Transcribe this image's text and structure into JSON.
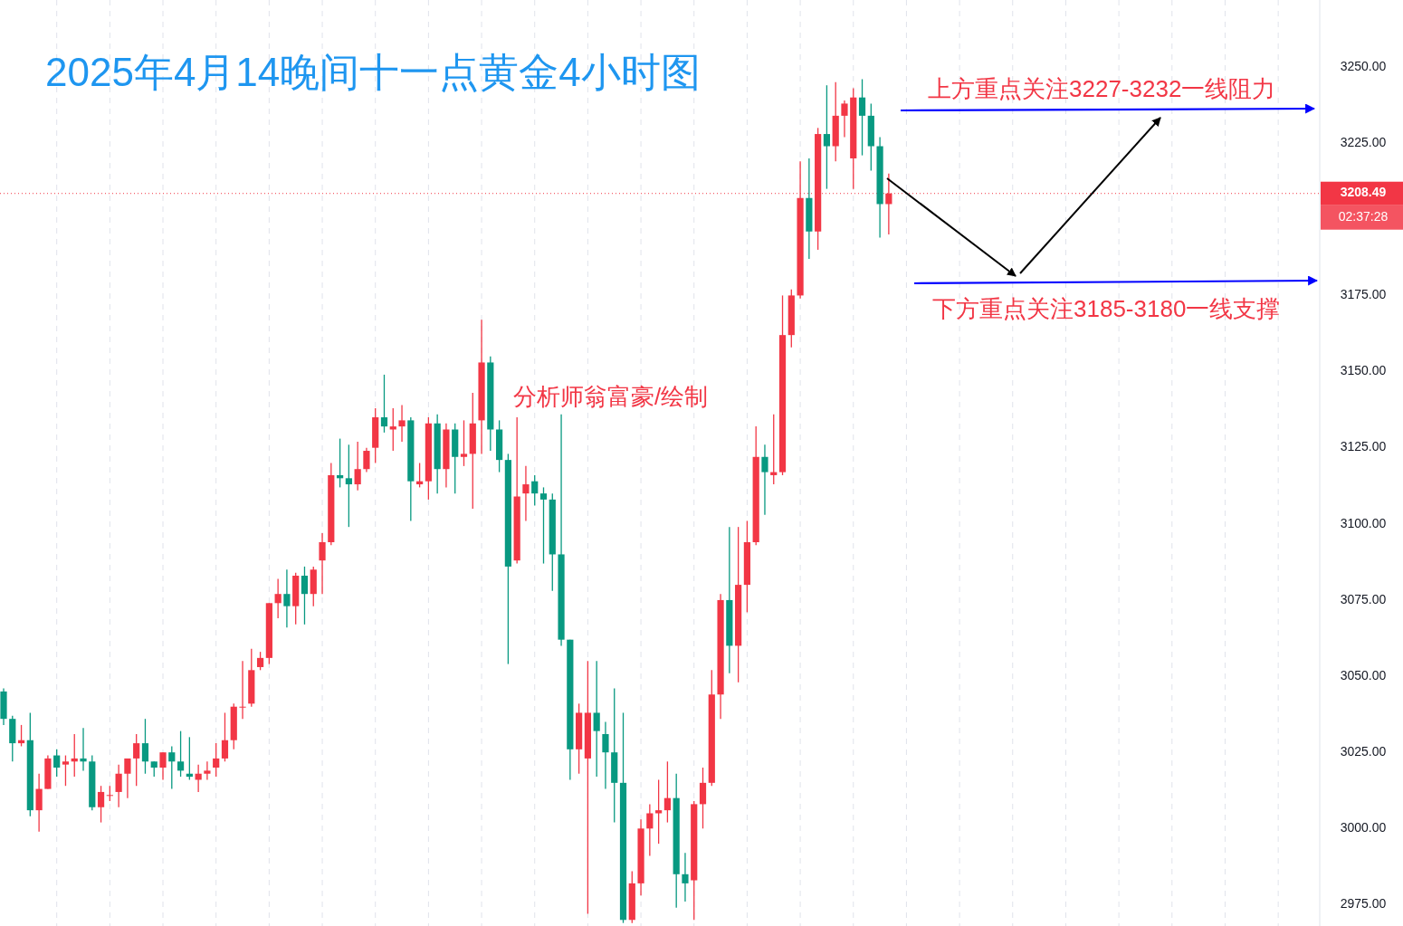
{
  "chart_data": {
    "type": "candlestick",
    "title": "2025年4月14晚间十一点黄金4小时图",
    "annotations": [
      "上方重点关注3227-3232一线阻力",
      "下方重点关注3185-3180一线支撑",
      "分析师翁富豪/绘制",
      "02:37:28"
    ],
    "categories": [
      null,
      null,
      null,
      null,
      null,
      null,
      null,
      null,
      null,
      null,
      null,
      null,
      null,
      null,
      null,
      null,
      null,
      null,
      null,
      null,
      null,
      null,
      null,
      null,
      null,
      null,
      null,
      null,
      null,
      null,
      null,
      null,
      null,
      null,
      null,
      null,
      null,
      null,
      null,
      null,
      null,
      null,
      null,
      null,
      null,
      null,
      null,
      null,
      null,
      null,
      null,
      null,
      null,
      null,
      null,
      null,
      null,
      null,
      null,
      null,
      null,
      null,
      null,
      null,
      null,
      null,
      null,
      null,
      null,
      null,
      null,
      null,
      null,
      null,
      null,
      null,
      null,
      null,
      null,
      null,
      null,
      null,
      null,
      null,
      null,
      null,
      null,
      null,
      null,
      null,
      null,
      null,
      null,
      null,
      null,
      null,
      null,
      null,
      null,
      null,
      null,
      null,
      null,
      null,
      null,
      null,
      null,
      null,
      null,
      null,
      null,
      null,
      null,
      null,
      null,
      null,
      null,
      null,
      null,
      null,
      null,
      null,
      null,
      null,
      null,
      null,
      null,
      null,
      null,
      null,
      null,
      null,
      null,
      null,
      null,
      null,
      null,
      null,
      null,
      null,
      null,
      null,
      null,
      null,
      null,
      null,
      null,
      null,
      null
    ],
    "ohlc": [
      [
        3045,
        3046,
        3034,
        3036
      ],
      [
        3036,
        3037,
        3022,
        3028
      ],
      [
        3028,
        3034,
        3027,
        3029
      ],
      [
        3029,
        3038,
        3004,
        3006
      ],
      [
        3006,
        3018,
        2999,
        3013
      ],
      [
        3013,
        3024,
        3013,
        3023
      ],
      [
        3024,
        3026,
        3017,
        3020
      ],
      [
        3021,
        3024,
        3014,
        3022
      ],
      [
        3022,
        3031,
        3017,
        3023
      ],
      [
        3023,
        3033,
        3019,
        3022
      ],
      [
        3022,
        3024,
        3006,
        3007
      ],
      [
        3007,
        3014,
        3002,
        3012
      ],
      [
        3011,
        3014,
        3009,
        3011
      ],
      [
        3012,
        3021,
        3007,
        3018
      ],
      [
        3018,
        3023,
        3010,
        3023
      ],
      [
        3023,
        3031,
        3014,
        3028
      ],
      [
        3028,
        3036,
        3018,
        3022
      ],
      [
        3022,
        3022,
        3017,
        3020
      ],
      [
        3020,
        3025,
        3016,
        3025
      ],
      [
        3025,
        3027,
        3013,
        3022
      ],
      [
        3022,
        3032,
        3017,
        3019
      ],
      [
        3018,
        3030,
        3016,
        3017
      ],
      [
        3016,
        3021,
        3012,
        3018
      ],
      [
        3018,
        3022,
        3016,
        3019
      ],
      [
        3020,
        3028,
        3017,
        3023
      ],
      [
        3023,
        3038,
        3022,
        3029
      ],
      [
        3029,
        3041,
        3026,
        3040
      ],
      [
        3040,
        3055,
        3036,
        3040
      ],
      [
        3041,
        3059,
        3040,
        3052
      ],
      [
        3053,
        3058,
        3052,
        3056
      ],
      [
        3056,
        3074,
        3054,
        3074
      ],
      [
        3074,
        3082,
        3069,
        3077
      ],
      [
        3077,
        3085,
        3066,
        3073
      ],
      [
        3073,
        3084,
        3067,
        3083
      ],
      [
        3083,
        3086,
        3067,
        3077
      ],
      [
        3077,
        3086,
        3073,
        3085
      ],
      [
        3088,
        3097,
        3077,
        3094
      ],
      [
        3094,
        3120,
        3093,
        3116
      ],
      [
        3116,
        3128,
        3112,
        3115
      ],
      [
        3115,
        3126,
        3099,
        3113
      ],
      [
        3113,
        3127,
        3111,
        3118
      ],
      [
        3118,
        3125,
        3117,
        3124
      ],
      [
        3125,
        3138,
        3120,
        3135
      ],
      [
        3135,
        3149,
        3130,
        3132
      ],
      [
        3131,
        3138,
        3124,
        3132
      ],
      [
        3132,
        3139,
        3127,
        3134
      ],
      [
        3134,
        3135,
        3101,
        3114
      ],
      [
        3113,
        3120,
        3112,
        3114
      ],
      [
        3114,
        3135,
        3108,
        3133
      ],
      [
        3133,
        3136,
        3110,
        3118
      ],
      [
        3118,
        3133,
        3112,
        3131
      ],
      [
        3131,
        3133,
        3110,
        3122
      ],
      [
        3122,
        3134,
        3119,
        3123
      ],
      [
        3123,
        3143,
        3105,
        3133
      ],
      [
        3134,
        3167,
        3123,
        3153
      ],
      [
        3153,
        3155,
        3124,
        3131
      ],
      [
        3131,
        3134,
        3117,
        3121
      ],
      [
        3121,
        3123,
        3054,
        3086
      ],
      [
        3088,
        3135,
        3087,
        3109
      ],
      [
        3110,
        3119,
        3101,
        3113
      ],
      [
        3114,
        3116,
        3106,
        3110
      ],
      [
        3110,
        3112,
        3087,
        3108
      ],
      [
        3108,
        3110,
        3078,
        3090
      ],
      [
        3090,
        3136,
        3060,
        3062
      ],
      [
        3062,
        3062,
        3016,
        3026
      ],
      [
        3026,
        3041,
        3018,
        3038
      ],
      [
        3023,
        3055,
        2972,
        3038
      ],
      [
        3038,
        3055,
        3017,
        3032
      ],
      [
        3031,
        3035,
        3013,
        3025
      ],
      [
        3025,
        3046,
        3002,
        3015
      ],
      [
        3015,
        3038,
        2969,
        2970
      ],
      [
        2970,
        2986,
        2969,
        2982
      ],
      [
        2982,
        3003,
        2978,
        3000
      ],
      [
        3000,
        3008,
        2991,
        3005
      ],
      [
        3005,
        3016,
        2995,
        3006
      ],
      [
        3006,
        3022,
        3002,
        3010
      ],
      [
        3010,
        3018,
        2974,
        2985
      ],
      [
        2985,
        2992,
        2976,
        2982
      ],
      [
        2983,
        3009,
        2970,
        3008
      ],
      [
        3008,
        3020,
        3000,
        3015
      ],
      [
        3015,
        3052,
        3014,
        3044
      ],
      [
        3044,
        3077,
        3036,
        3075
      ],
      [
        3075,
        3099,
        3051,
        3060
      ],
      [
        3060,
        3099,
        3048,
        3080
      ],
      [
        3080,
        3101,
        3071,
        3094
      ],
      [
        3094,
        3132,
        3093,
        3122
      ],
      [
        3122,
        3126,
        3103,
        3117
      ],
      [
        3116,
        3136,
        3113,
        3117
      ],
      [
        3117,
        3175,
        3116,
        3162
      ],
      [
        3162,
        3177,
        3158,
        3175
      ],
      [
        3175,
        3219,
        3174,
        3207
      ],
      [
        3207,
        3220,
        3187,
        3196
      ],
      [
        3196,
        3230,
        3190,
        3228
      ],
      [
        3228,
        3244,
        3210,
        3224
      ],
      [
        3224,
        3245,
        3219,
        3234
      ],
      [
        3234,
        3239,
        3227,
        3238
      ],
      [
        3220,
        3243,
        3210,
        3240
      ],
      [
        3240,
        3246,
        3221,
        3234
      ],
      [
        3234,
        3238,
        3216,
        3224
      ],
      [
        3224,
        3227,
        3194,
        3205
      ],
      [
        3205,
        3215,
        3195,
        3208.49
      ],
      null,
      null,
      null,
      null,
      null,
      null,
      null,
      null,
      null,
      null,
      null,
      null,
      null,
      null,
      null,
      null,
      null,
      null,
      null,
      null,
      null,
      null,
      null,
      null,
      null,
      null,
      null,
      null,
      null,
      null,
      null,
      null,
      null,
      null,
      null,
      null,
      null,
      null,
      null,
      null,
      null,
      null,
      null,
      null,
      null,
      null,
      null,
      null
    ],
    "colors": [
      "#089981",
      "#089981",
      "#f23645",
      "#089981",
      "#f23645",
      "#f23645",
      "#089981",
      "#f23645",
      "#f23645",
      "#089981",
      "#089981",
      "#f23645",
      "#f23645",
      "#f23645",
      "#f23645",
      "#f23645",
      "#089981",
      "#089981",
      "#f23645",
      "#089981",
      "#089981",
      "#089981",
      "#f23645",
      "#f23645",
      "#f23645",
      "#f23645",
      "#f23645",
      "#f23645",
      "#f23645",
      "#f23645",
      "#f23645",
      "#f23645",
      "#089981",
      "#f23645",
      "#089981",
      "#f23645",
      "#f23645",
      "#f23645",
      "#089981",
      "#089981",
      "#f23645",
      "#f23645",
      "#f23645",
      "#089981",
      "#f23645",
      "#f23645",
      "#089981",
      "#f23645",
      "#f23645",
      "#089981",
      "#f23645",
      "#089981",
      "#f23645",
      "#f23645",
      "#f23645",
      "#089981",
      "#089981",
      "#089981",
      "#f23645",
      "#f23645",
      "#089981",
      "#089981",
      "#089981",
      "#089981",
      "#089981",
      "#f23645",
      "#f23645",
      "#089981",
      "#089981",
      "#089981",
      "#089981",
      "#f23645",
      "#f23645",
      "#f23645",
      "#f23645",
      "#f23645",
      "#089981",
      "#089981",
      "#f23645",
      "#f23645",
      "#f23645",
      "#f23645",
      "#089981",
      "#f23645",
      "#f23645",
      "#f23645",
      "#089981",
      "#f23645",
      "#f23645",
      "#f23645",
      "#f23645",
      "#089981",
      "#f23645",
      "#089981",
      "#f23645",
      "#f23645",
      "#f23645",
      "#089981",
      "#089981",
      "#089981",
      "#f23645",
      null,
      null,
      null,
      null,
      null,
      null,
      null,
      null,
      null,
      null,
      null,
      null,
      null,
      null,
      null,
      null,
      null,
      null,
      null,
      null,
      null,
      null,
      null,
      null,
      null,
      null,
      null,
      null,
      null,
      null,
      null,
      null,
      null,
      null,
      null,
      null,
      null,
      null,
      null,
      null,
      null,
      null,
      null,
      null,
      null,
      null,
      null,
      null
    ],
    "ylim": [
      2968,
      3272
    ],
    "yticks": [
      {
        "value": 2975,
        "label": "2975.00"
      },
      {
        "value": 3000,
        "label": "3000.00"
      },
      {
        "value": 3025,
        "label": "3025.00"
      },
      {
        "value": 3050,
        "label": "3050.00"
      },
      {
        "value": 3075,
        "label": "3075.00"
      },
      {
        "value": 3100,
        "label": "3100.00"
      },
      {
        "value": 3125,
        "label": "3125.00"
      },
      {
        "value": 3150,
        "label": "3150.00"
      },
      {
        "value": 3175,
        "label": "3175.00"
      },
      {
        "value": 3225,
        "label": "3225.00"
      },
      {
        "value": 3250,
        "label": "3250.00"
      }
    ],
    "ref_lines": [
      {
        "axis": "y",
        "value": 3208.49,
        "label": "3208.49",
        "color": "#f23645",
        "line_style": "dotted"
      }
    ],
    "grid": "x",
    "tick_labels": "y"
  }
}
